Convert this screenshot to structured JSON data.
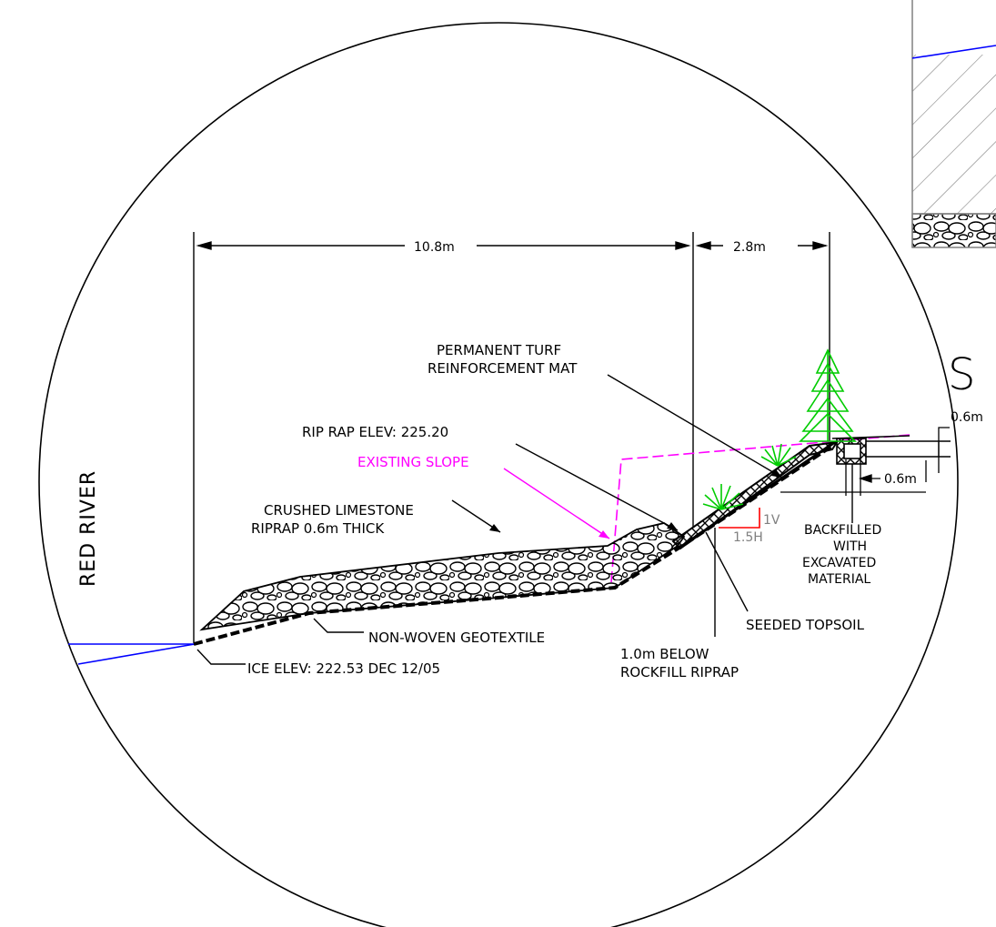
{
  "colors": {
    "line": "#000000",
    "water": "#0000ff",
    "existing_slope": "#ff00ff",
    "vegetation": "#00cc00",
    "slope_marker": "#ff0000",
    "slope_text": "#808080",
    "hatch": "#808080"
  },
  "labels": {
    "river": "RED RIVER",
    "dim_left": "10.8m",
    "dim_right": "2.8m",
    "turf_mat_line1": "PERMANENT TURF",
    "turf_mat_line2": "REINFORCEMENT MAT",
    "riprap_elev": "RIP RAP  ELEV: 225.20",
    "existing_slope": "EXISTING SLOPE",
    "limestone_line1": "CRUSHED LIMESTONE",
    "limestone_line2": "RIPRAP 0.6m THICK",
    "geotextile": "NON-WOVEN GEOTEXTILE",
    "ice_elev": "ICE  ELEV: 222.53 DEC 12/05",
    "below_line1": "1.0m BELOW",
    "below_line2": "ROCKFILL RIPRAP",
    "topsoil": "SEEDED TOPSOIL",
    "backfill_line1": "BACKFILLED",
    "backfill_line2": "WITH",
    "backfill_line3": "EXCAVATED",
    "backfill_line4": "MATERIAL",
    "slope_v": "1V",
    "slope_h": "1.5H",
    "trench_depth": "0.6m",
    "trench_width": "0.6m",
    "section_letter": "S"
  }
}
